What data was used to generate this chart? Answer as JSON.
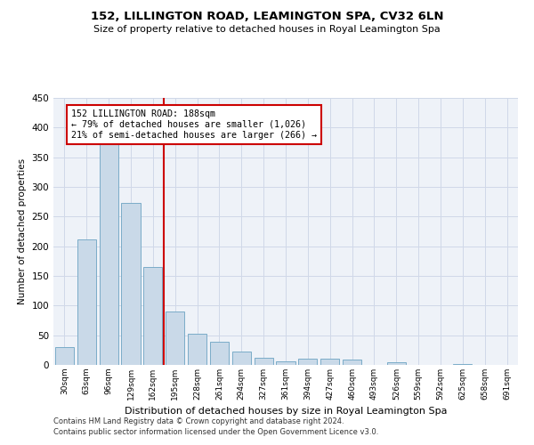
{
  "title": "152, LILLINGTON ROAD, LEAMINGTON SPA, CV32 6LN",
  "subtitle": "Size of property relative to detached houses in Royal Leamington Spa",
  "xlabel": "Distribution of detached houses by size in Royal Leamington Spa",
  "ylabel": "Number of detached properties",
  "footnote1": "Contains HM Land Registry data © Crown copyright and database right 2024.",
  "footnote2": "Contains public sector information licensed under the Open Government Licence v3.0.",
  "bar_color": "#c9d9e8",
  "bar_edge_color": "#7aacc8",
  "red_line_color": "#cc0000",
  "grid_color": "#d0d8e8",
  "bg_color": "#eef2f8",
  "annotation_line1": "152 LILLINGTON ROAD: 188sqm",
  "annotation_line2": "← 79% of detached houses are smaller (1,026)",
  "annotation_line3": "21% of semi-detached houses are larger (266) →",
  "annotation_box_color": "#cc0000",
  "categories": [
    "30sqm",
    "63sqm",
    "96sqm",
    "129sqm",
    "162sqm",
    "195sqm",
    "228sqm",
    "261sqm",
    "294sqm",
    "327sqm",
    "361sqm",
    "394sqm",
    "427sqm",
    "460sqm",
    "493sqm",
    "526sqm",
    "559sqm",
    "592sqm",
    "625sqm",
    "658sqm",
    "691sqm"
  ],
  "values": [
    30,
    211,
    375,
    273,
    165,
    90,
    52,
    39,
    22,
    12,
    6,
    11,
    11,
    9,
    0,
    4,
    0,
    0,
    1,
    0,
    0
  ],
  "ylim": [
    0,
    450
  ],
  "yticks": [
    0,
    50,
    100,
    150,
    200,
    250,
    300,
    350,
    400,
    450
  ]
}
